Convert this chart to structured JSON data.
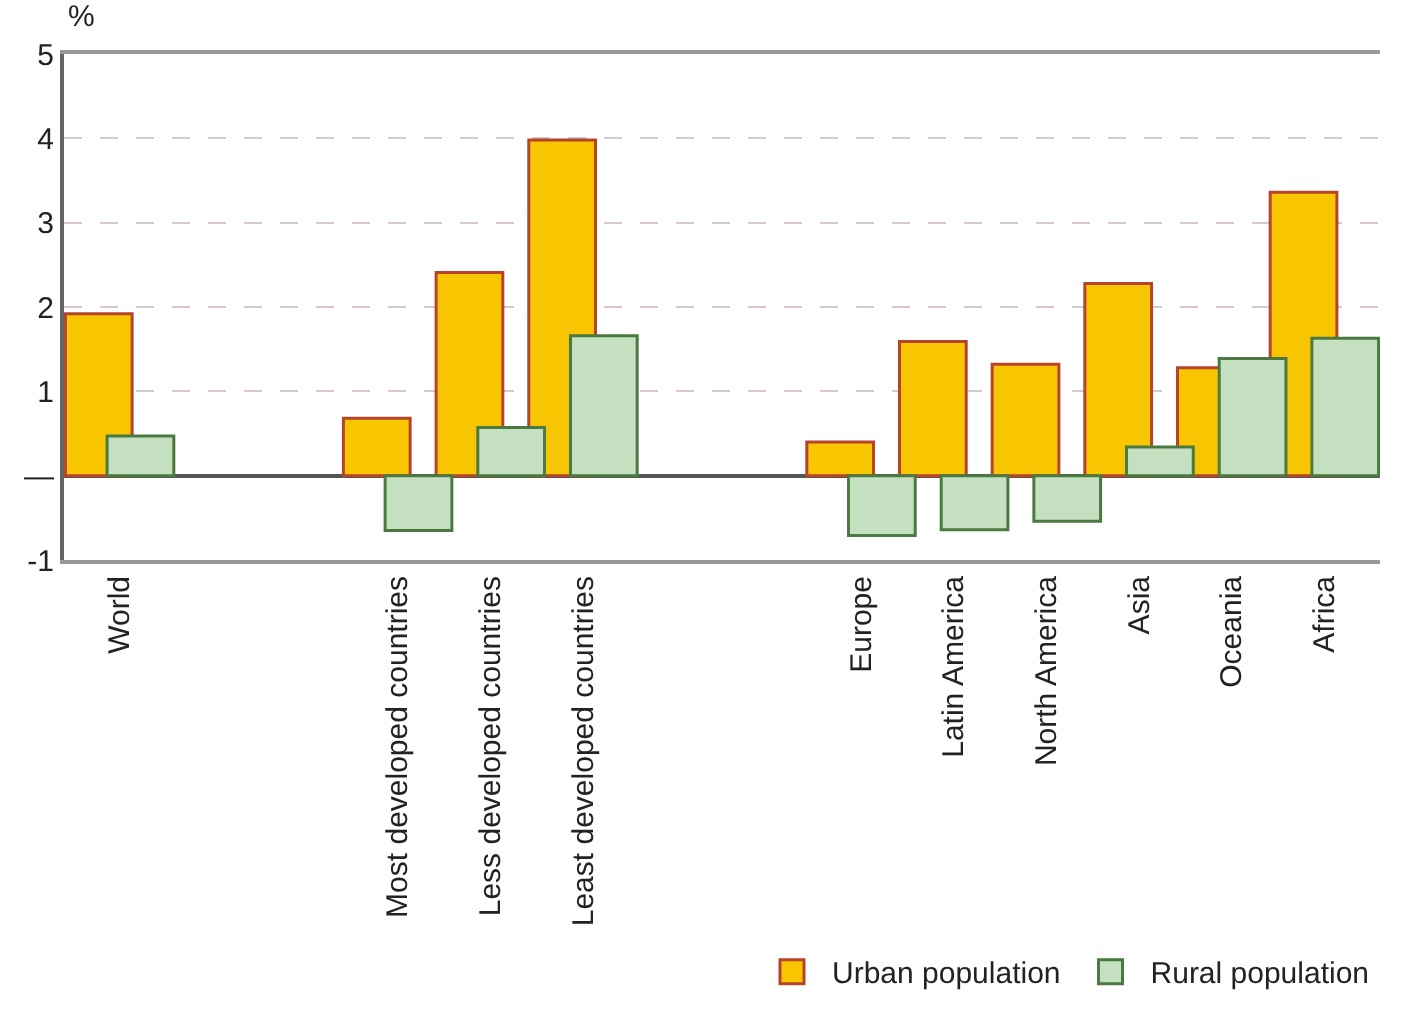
{
  "chart_data": {
    "type": "bar",
    "ylabel": "%",
    "categories": [
      "World",
      null,
      null,
      "Most developed countries",
      "Less developed countries",
      "Least developed countries",
      null,
      null,
      "Europe",
      "Latin America",
      "North America",
      "Asia",
      "Oceania",
      "Africa"
    ],
    "series": [
      {
        "name": "Urban population",
        "color": "#f7c600",
        "values": [
          1.92,
          null,
          null,
          0.68,
          2.41,
          3.98,
          null,
          null,
          0.4,
          1.59,
          1.32,
          2.28,
          1.28,
          3.36
        ]
      },
      {
        "name": "Rural population",
        "color": "#c5e0c0",
        "values": [
          0.47,
          null,
          null,
          -0.65,
          0.57,
          1.66,
          null,
          null,
          -0.71,
          -0.64,
          -0.54,
          0.34,
          1.39,
          1.63
        ]
      }
    ],
    "ylim": [
      -1,
      5
    ],
    "yticks": [
      -1,
      {
        "value": 0,
        "label": "—"
      },
      1,
      2,
      3,
      4,
      5
    ],
    "grid": "y",
    "legend": "bottom right"
  }
}
